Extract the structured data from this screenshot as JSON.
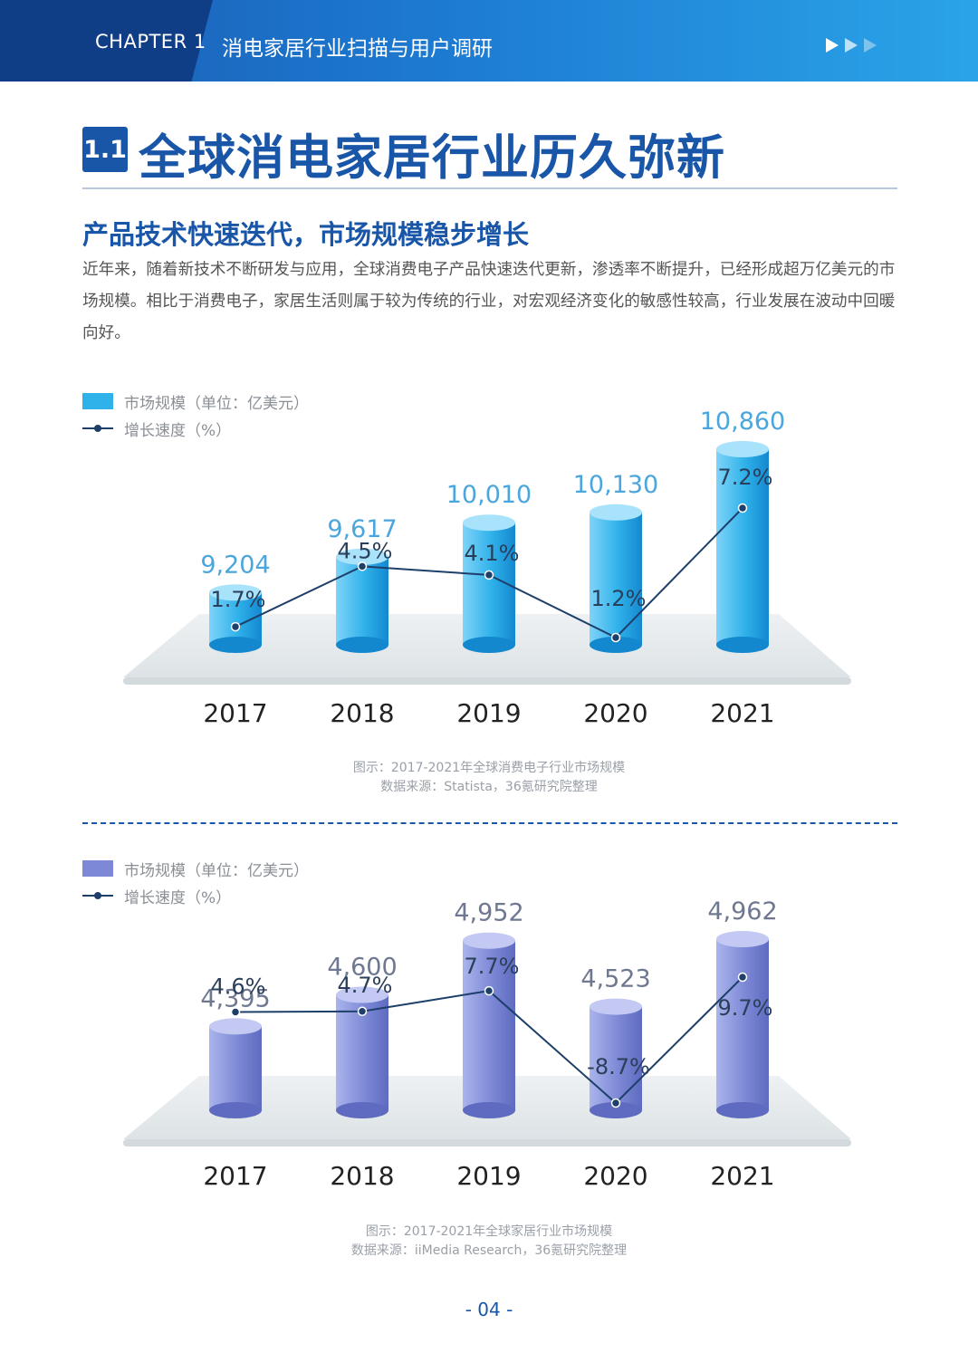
{
  "header": {
    "chapter": "CHAPTER 1",
    "subject": "消电家居行业扫描与用户调研"
  },
  "section": {
    "number": "1.1",
    "title": "全球消电家居行业历久弥新"
  },
  "subtitle": "产品技术快速迭代，市场规模稳步增长",
  "paragraph": "近年来，随着新技术不断研发与应用，全球消费电子产品快速迭代更新，渗透率不断提升，已经形成超万亿美元的市场规模。相比于消费电子，家居生活则属于较为传统的行业，对宏观经济变化的敏感性较高，行业发展在波动中回暖向好。",
  "chart_data": [
    {
      "type": "bar",
      "categories": [
        "2017",
        "2018",
        "2019",
        "2020",
        "2021"
      ],
      "series": [
        {
          "name": "市场规模（单位：亿美元）",
          "values": [
            9204,
            9617,
            10010,
            10130,
            10860
          ],
          "labels": [
            "9,204",
            "9,617",
            "10,010",
            "10,130",
            "10,860"
          ],
          "kind": "bar"
        },
        {
          "name": "增长速度（%）",
          "values": [
            1.7,
            4.5,
            4.1,
            1.2,
            7.2
          ],
          "labels": [
            "1.7%",
            "4.5%",
            "4.1%",
            "1.2%",
            "7.2%"
          ],
          "kind": "line"
        }
      ],
      "legend": [
        "市场规模（单位：亿美元）",
        "增长速度（%）"
      ],
      "caption": "图示：2017-2021年全球消费电子行业市场规模",
      "source": "数据来源：Statista，36氪研究院整理",
      "colors": {
        "bar_light": "#7fd4f8",
        "bar_mid": "#2fb1ea",
        "bar_dark": "#1488cf",
        "bar_top": "#a9e2fb",
        "line": "#1d3f6a",
        "value_label": "#4aa6dc",
        "legend_swatch": "#2fb1ea"
      }
    },
    {
      "type": "bar",
      "categories": [
        "2017",
        "2018",
        "2019",
        "2020",
        "2021"
      ],
      "series": [
        {
          "name": "市场规模（单位：亿美元）",
          "values": [
            4395,
            4600,
            4952,
            4523,
            4962
          ],
          "labels": [
            "4,395",
            "4,600",
            "4,952",
            "4,523",
            "4,962"
          ],
          "kind": "bar"
        },
        {
          "name": "增长速度（%）",
          "values": [
            4.6,
            4.7,
            7.7,
            -8.7,
            9.7
          ],
          "labels": [
            "4.6%",
            "4.7%",
            "7.7%",
            "-8.7%",
            "9.7%"
          ],
          "kind": "line"
        }
      ],
      "legend": [
        "市场规模（单位：亿美元）",
        "增长速度（%）"
      ],
      "caption": "图示：2017-2021年全球家居行业市场规模",
      "source": "数据来源：iiMedia Research，36氪研究院整理",
      "colors": {
        "bar_light": "#aab4ec",
        "bar_mid": "#7d89d6",
        "bar_dark": "#5e6bc0",
        "bar_top": "#c3c9f2",
        "line": "#1d3f6a",
        "value_label": "#6e7890",
        "legend_swatch": "#7d89d6"
      }
    }
  ],
  "page_number": "- 04 -"
}
